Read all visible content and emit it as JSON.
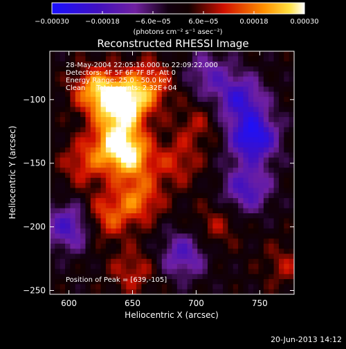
{
  "chart_data": {
    "type": "heatmap",
    "title": "Reconstructed RHESSI Image",
    "xlabel": "Heliocentric X (arcsec)",
    "ylabel": "Heliocentric Y (arcsec)",
    "xlim": [
      585,
      777
    ],
    "ylim": [
      -253,
      -62
    ],
    "x_ticks": [
      600,
      650,
      700,
      750
    ],
    "y_ticks": [
      -100,
      -150,
      -200,
      -250
    ],
    "x_tick_labels": [
      "600",
      "650",
      "700",
      "750"
    ],
    "y_tick_labels": [
      "−100",
      "−150",
      "−200",
      "−250"
    ],
    "colorbar": {
      "min": -0.0003,
      "max": 0.0003,
      "tick_values": [
        -0.0003,
        -0.00018,
        -6e-05,
        6e-05,
        0.00018,
        0.0003
      ],
      "tick_labels": [
        "−0.00030",
        "−0.00018",
        "−6.0e−05",
        "6.0e−05",
        "0.00018",
        "0.00030"
      ],
      "unit_label": "(photons cm⁻² s⁻¹ asec⁻²)",
      "colormap": "rainbow-to-hot"
    },
    "annotations": [
      "28-May-2004 22:05:16.000 to 22:09:22.000",
      "Detectors: 4F 5F 6F 7F 8F, Att 0",
      "Energy Range: 25.0 - 50.0 keV",
      "Clean     Total counts: 2.32E+04"
    ],
    "peak_label": "Position of Peak = [639,-105]",
    "peak": {
      "x": 639,
      "y": -105
    },
    "features": [
      {
        "x": 643,
        "y": -104,
        "value": 0.0003
      },
      {
        "x": 622,
        "y": -93,
        "value": 0.00022
      },
      {
        "x": 663,
        "y": -88,
        "value": 0.00016
      },
      {
        "x": 636,
        "y": -132,
        "value": 0.0002
      },
      {
        "x": 648,
        "y": -145,
        "value": 0.00022
      },
      {
        "x": 612,
        "y": -150,
        "value": 0.00012
      },
      {
        "x": 655,
        "y": -178,
        "value": 0.00016
      },
      {
        "x": 630,
        "y": -192,
        "value": 0.00014
      },
      {
        "x": 685,
        "y": -150,
        "value": 0.0001
      },
      {
        "x": 700,
        "y": -120,
        "value": 8e-05
      },
      {
        "x": 715,
        "y": -200,
        "value": 8e-05
      },
      {
        "x": 650,
        "y": -235,
        "value": 0.0001
      },
      {
        "x": 770,
        "y": -230,
        "value": 8e-05
      },
      {
        "x": 745,
        "y": -130,
        "value": -0.00028
      },
      {
        "x": 735,
        "y": -100,
        "value": -0.0002
      },
      {
        "x": 740,
        "y": -170,
        "value": -0.00018
      },
      {
        "x": 600,
        "y": -200,
        "value": -0.00018
      },
      {
        "x": 690,
        "y": -222,
        "value": -0.00016
      },
      {
        "x": 710,
        "y": -80,
        "value": -0.00012
      }
    ]
  },
  "footer": {
    "timestamp": "20-Jun-2013 14:12"
  }
}
